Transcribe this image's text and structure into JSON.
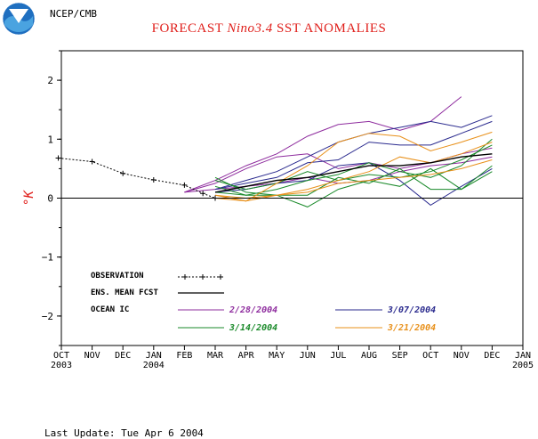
{
  "header": {
    "agency": "NCEP/CMB",
    "title_prefix": "FORECAST ",
    "title_italic": "Nino3.4",
    "title_suffix": " SST ANOMALIES",
    "logo_text": "NOAA"
  },
  "footer": {
    "last_update": "Last Update: Tue Apr 6 2004"
  },
  "colors": {
    "observation": "#000000",
    "ens_mean": "#000000",
    "ic_0228": "#8e2c9e",
    "ic_0307": "#2a2a8e",
    "ic_0314": "#1a8a2a",
    "ic_0321": "#e8901a",
    "ylabel": "#e0201c"
  },
  "chart_data": {
    "type": "line",
    "title": "FORECAST Nino3.4 SST ANOMALIES",
    "ylabel": "°K",
    "ylim": [
      -2.5,
      2.5
    ],
    "yticks": [
      -2,
      -1,
      0,
      1,
      2
    ],
    "xlim": [
      0,
      15
    ],
    "xticks": [
      {
        "x": 0,
        "label": "OCT",
        "year": "2003"
      },
      {
        "x": 1,
        "label": "NOV",
        "year": ""
      },
      {
        "x": 2,
        "label": "DEC",
        "year": ""
      },
      {
        "x": 3,
        "label": "JAN",
        "year": "2004"
      },
      {
        "x": 4,
        "label": "FEB",
        "year": ""
      },
      {
        "x": 5,
        "label": "MAR",
        "year": ""
      },
      {
        "x": 6,
        "label": "APR",
        "year": ""
      },
      {
        "x": 7,
        "label": "MAY",
        "year": ""
      },
      {
        "x": 8,
        "label": "JUN",
        "year": ""
      },
      {
        "x": 9,
        "label": "JUL",
        "year": ""
      },
      {
        "x": 10,
        "label": "AUG",
        "year": ""
      },
      {
        "x": 11,
        "label": "SEP",
        "year": ""
      },
      {
        "x": 12,
        "label": "OCT",
        "year": ""
      },
      {
        "x": 13,
        "label": "NOV",
        "year": ""
      },
      {
        "x": 14,
        "label": "DEC",
        "year": ""
      },
      {
        "x": 15,
        "label": "JAN",
        "year": "2005"
      }
    ],
    "zero_line": true,
    "legend": {
      "observation": "OBSERVATION",
      "ens_mean": "ENS. MEAN FCST",
      "ocean_ic": "OCEAN IC",
      "ic_labels": [
        "2/28/2004",
        "3/07/2004",
        "3/14/2004",
        "3/21/2004"
      ]
    },
    "observation": {
      "x": [
        -0.1,
        1,
        2,
        3,
        4,
        4.6,
        5
      ],
      "y": [
        0.68,
        0.62,
        0.42,
        0.31,
        0.22,
        0.08,
        0.0
      ]
    },
    "ensemble_mean": {
      "x": [
        5,
        6,
        7,
        8,
        9,
        10,
        11,
        12,
        13,
        14
      ],
      "y": [
        0.1,
        0.2,
        0.3,
        0.35,
        0.45,
        0.55,
        0.55,
        0.6,
        0.7,
        0.75
      ]
    },
    "series": [
      {
        "ic": 0,
        "x": [
          4,
          5,
          6,
          7,
          8,
          9,
          10,
          11,
          12,
          13
        ],
        "y": [
          0.1,
          0.3,
          0.55,
          0.75,
          1.05,
          1.25,
          1.3,
          1.15,
          1.3,
          1.72
        ]
      },
      {
        "ic": 0,
        "x": [
          4,
          5,
          6,
          7,
          8,
          9,
          10,
          11,
          12,
          13,
          14
        ],
        "y": [
          0.1,
          0.25,
          0.5,
          0.7,
          0.75,
          0.5,
          0.6,
          0.5,
          0.6,
          0.75,
          0.85
        ]
      },
      {
        "ic": 0,
        "x": [
          4,
          5,
          6,
          7,
          8,
          9,
          10,
          11,
          12,
          13,
          14
        ],
        "y": [
          0.1,
          0.15,
          0.2,
          0.25,
          0.35,
          0.25,
          0.3,
          0.45,
          0.55,
          0.6,
          0.7
        ]
      },
      {
        "ic": 1,
        "x": [
          5,
          6,
          7,
          8,
          9,
          10,
          11,
          12,
          13,
          14
        ],
        "y": [
          0.15,
          0.3,
          0.45,
          0.7,
          0.95,
          1.1,
          1.2,
          1.3,
          1.2,
          1.4
        ]
      },
      {
        "ic": 1,
        "x": [
          5,
          6,
          7,
          8,
          9,
          10,
          11,
          12,
          13,
          14
        ],
        "y": [
          0.15,
          0.25,
          0.35,
          0.6,
          0.65,
          0.95,
          0.9,
          0.9,
          1.1,
          1.3
        ]
      },
      {
        "ic": 1,
        "x": [
          5,
          6,
          7,
          8,
          9,
          10,
          11,
          12,
          13,
          14
        ],
        "y": [
          0.1,
          0.15,
          0.25,
          0.3,
          0.55,
          0.6,
          0.3,
          -0.12,
          0.2,
          0.5
        ]
      },
      {
        "ic": 2,
        "x": [
          5,
          6,
          7,
          8,
          9,
          10,
          11,
          12,
          13,
          14
        ],
        "y": [
          0.35,
          0.1,
          0.05,
          -0.15,
          0.15,
          0.3,
          0.2,
          0.5,
          0.15,
          0.45
        ]
      },
      {
        "ic": 2,
        "x": [
          5,
          6,
          7,
          8,
          9,
          10,
          11,
          12,
          13,
          14
        ],
        "y": [
          0.3,
          0.15,
          0.25,
          0.45,
          0.3,
          0.4,
          0.35,
          0.45,
          0.65,
          0.9
        ]
      },
      {
        "ic": 2,
        "x": [
          5,
          6,
          7,
          8,
          9,
          10,
          11,
          12,
          13,
          14
        ],
        "y": [
          0.2,
          0.05,
          0.05,
          0.05,
          0.35,
          0.25,
          0.5,
          0.15,
          0.15,
          0.55
        ]
      },
      {
        "ic": 2,
        "x": [
          5,
          6,
          7,
          8,
          9,
          10,
          11,
          12,
          13,
          14
        ],
        "y": [
          0.1,
          0.05,
          0.15,
          0.3,
          0.4,
          0.6,
          0.45,
          0.35,
          0.55,
          1.0
        ]
      },
      {
        "ic": 3,
        "x": [
          5,
          6,
          7,
          8,
          9,
          10,
          11,
          12,
          13,
          14
        ],
        "y": [
          0.05,
          -0.05,
          0.25,
          0.55,
          0.95,
          1.1,
          1.05,
          0.8,
          0.95,
          1.12
        ]
      },
      {
        "ic": 3,
        "x": [
          5,
          6,
          7,
          8,
          9,
          10,
          11,
          12,
          13,
          14
        ],
        "y": [
          0.05,
          0.0,
          0.05,
          0.15,
          0.3,
          0.45,
          0.7,
          0.6,
          0.75,
          0.95
        ]
      },
      {
        "ic": 3,
        "x": [
          5,
          6,
          7,
          8,
          9,
          10,
          11,
          12,
          13,
          14
        ],
        "y": [
          0.0,
          -0.05,
          0.05,
          0.1,
          0.25,
          0.3,
          0.35,
          0.4,
          0.5,
          0.65
        ]
      }
    ]
  }
}
